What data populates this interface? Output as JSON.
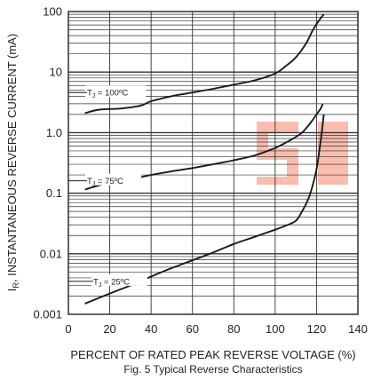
{
  "chart_data": {
    "type": "line",
    "title": "",
    "caption": "Fig. 5  Typical Reverse Characteristics",
    "xlabel": "PERCENT OF RATED PEAK REVERSE VOLTAGE (%)",
    "ylabel": "I_R, INSTANTANEOUS REVERSE CURRENT (mA)",
    "ylabel_parts": {
      "main": "I",
      "sub": "R",
      "rest": ", INSTANTANEOUS REVERSE CURRENT (mA)"
    },
    "x_scale": "linear",
    "y_scale": "log",
    "xlim": [
      0,
      140
    ],
    "ylim": [
      0.001,
      100
    ],
    "x_ticks": [
      0,
      20,
      40,
      60,
      80,
      100,
      120,
      140
    ],
    "x_tick_labels": [
      "0",
      "20",
      "40",
      "60",
      "80",
      "100",
      "120",
      "140"
    ],
    "y_ticks": [
      0.001,
      0.01,
      0.1,
      1,
      10,
      100
    ],
    "y_tick_labels": [
      "0.001",
      "0.01",
      "0.1",
      "1.0",
      "10",
      "100"
    ],
    "grid": true,
    "watermark": "SI",
    "series": [
      {
        "label_parts": {
          "pre": "T",
          "sub": "J",
          "post": " = 100ºC"
        },
        "label_at": [
          9,
          4.6
        ],
        "x": [
          8,
          15,
          25,
          35,
          40,
          50,
          60,
          70,
          80,
          90,
          100,
          105,
          110,
          115,
          118,
          120,
          122,
          123.5
        ],
        "y": [
          2.1,
          2.4,
          2.5,
          2.8,
          3.3,
          4.0,
          4.6,
          5.3,
          6.2,
          7.3,
          9.5,
          12.5,
          17.5,
          30,
          48,
          62,
          78,
          90
        ]
      },
      {
        "label_parts": {
          "pre": "T",
          "sub": "J",
          "post": " = 75ºC"
        },
        "label_at": [
          9,
          0.16
        ],
        "x": [
          8,
          20,
          30,
          40,
          50,
          60,
          70,
          80,
          90,
          100,
          105,
          110,
          113,
          116,
          118,
          120,
          122,
          123
        ],
        "y": [
          0.115,
          0.15,
          0.17,
          0.2,
          0.23,
          0.26,
          0.3,
          0.35,
          0.42,
          0.56,
          0.68,
          0.85,
          1.0,
          1.3,
          1.6,
          2.0,
          2.5,
          3.0
        ]
      },
      {
        "label_parts": {
          "pre": "T",
          "sub": "J",
          "post": " = 25ºC"
        },
        "label_at": [
          12,
          0.0035
        ],
        "x": [
          8,
          20,
          30,
          40,
          50,
          60,
          70,
          80,
          90,
          100,
          105,
          110,
          113,
          116,
          118,
          120,
          121.5,
          122.5,
          123.5
        ],
        "y": [
          0.0015,
          0.0022,
          0.003,
          0.0042,
          0.0058,
          0.0078,
          0.0105,
          0.0145,
          0.019,
          0.025,
          0.029,
          0.035,
          0.05,
          0.08,
          0.13,
          0.25,
          0.55,
          1.0,
          2.0
        ]
      }
    ]
  }
}
